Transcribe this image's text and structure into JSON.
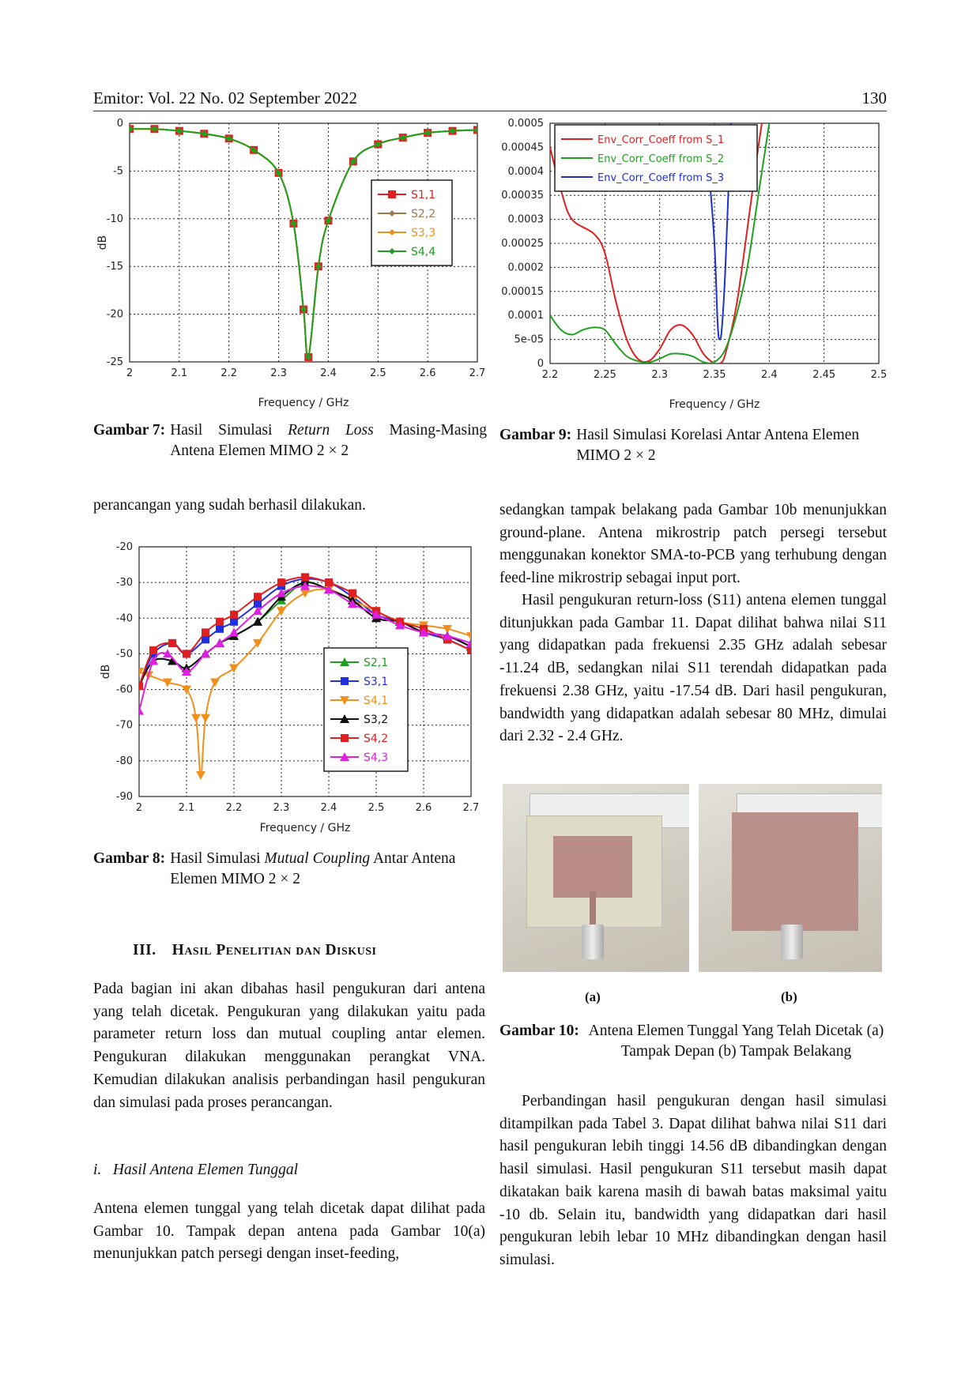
{
  "header": {
    "journal": "Emitor: Vol. 22 No. 02 September 2022",
    "page": "130"
  },
  "figures": {
    "fig7": {
      "label": "Gambar 7:",
      "caption_pre": "Hasil Simulasi ",
      "caption_em": "Return Loss",
      "caption_post": " Masing-Masing Antena Elemen MIMO 2 × 2"
    },
    "fig8": {
      "label": "Gambar 8:",
      "caption_pre": "Hasil Simulasi ",
      "caption_em": "Mutual Coupling",
      "caption_post": " Antar Antena Elemen MIMO 2 × 2"
    },
    "fig9": {
      "label": "Gambar 9:",
      "caption": "Hasil Simulasi Korelasi Antar Antena Elemen MIMO 2 × 2"
    },
    "fig10": {
      "label": "Gambar 10:",
      "caption": "Antena Elemen Tunggal Yang Telah Dicetak (a) Tampak Depan (b) Tampak Belakang",
      "sub_a": "(a)",
      "sub_b": "(b)"
    }
  },
  "chart_data": [
    {
      "id": "fig7",
      "type": "line",
      "title": "",
      "xlabel": "Frequency / GHz",
      "ylabel": "dB",
      "xlim": [
        2,
        2.7
      ],
      "ylim": [
        -25,
        0
      ],
      "xticks": [
        "2",
        "2.1",
        "2.2",
        "2.3",
        "2.4",
        "2.5",
        "2.6",
        "2.7"
      ],
      "yticks": [
        "0",
        "-5",
        "-10",
        "-15",
        "-20",
        "-25"
      ],
      "legend_position": "right",
      "series": [
        {
          "name": "S1,1",
          "color": "#e02020",
          "marker": "square",
          "x": [
            2.0,
            2.05,
            2.1,
            2.15,
            2.2,
            2.25,
            2.3,
            2.33,
            2.35,
            2.36,
            2.38,
            2.4,
            2.45,
            2.5,
            2.55,
            2.6,
            2.65,
            2.7
          ],
          "y": [
            -0.6,
            -0.6,
            -0.8,
            -1.1,
            -1.6,
            -2.8,
            -5.2,
            -10.5,
            -19.5,
            -24.5,
            -15.0,
            -10.2,
            -4.0,
            -2.2,
            -1.5,
            -1.0,
            -0.8,
            -0.7
          ]
        },
        {
          "name": "S2,2",
          "color": "#a0784a",
          "marker": "diamond",
          "x": [
            2.0,
            2.05,
            2.1,
            2.15,
            2.2,
            2.25,
            2.3,
            2.33,
            2.35,
            2.36,
            2.38,
            2.4,
            2.45,
            2.5,
            2.55,
            2.6,
            2.65,
            2.7
          ],
          "y": [
            -0.6,
            -0.6,
            -0.8,
            -1.1,
            -1.6,
            -2.8,
            -5.2,
            -10.5,
            -19.5,
            -24.5,
            -15.0,
            -10.2,
            -4.0,
            -2.2,
            -1.5,
            -1.0,
            -0.8,
            -0.7
          ]
        },
        {
          "name": "S3,3",
          "color": "#f0901a",
          "marker": "diamond",
          "x": [
            2.0,
            2.05,
            2.1,
            2.15,
            2.2,
            2.25,
            2.3,
            2.33,
            2.35,
            2.36,
            2.38,
            2.4,
            2.45,
            2.5,
            2.55,
            2.6,
            2.65,
            2.7
          ],
          "y": [
            -0.6,
            -0.6,
            -0.8,
            -1.1,
            -1.6,
            -2.8,
            -5.2,
            -10.5,
            -19.5,
            -24.5,
            -15.0,
            -10.2,
            -4.0,
            -2.2,
            -1.5,
            -1.0,
            -0.8,
            -0.7
          ]
        },
        {
          "name": "S4,4",
          "color": "#20a020",
          "marker": "diamond",
          "x": [
            2.0,
            2.05,
            2.1,
            2.15,
            2.2,
            2.25,
            2.3,
            2.33,
            2.35,
            2.36,
            2.38,
            2.4,
            2.45,
            2.5,
            2.55,
            2.6,
            2.65,
            2.7
          ],
          "y": [
            -0.6,
            -0.6,
            -0.8,
            -1.1,
            -1.6,
            -2.8,
            -5.2,
            -10.5,
            -19.5,
            -24.5,
            -15.0,
            -10.2,
            -4.0,
            -2.2,
            -1.5,
            -1.0,
            -0.8,
            -0.7
          ]
        }
      ]
    },
    {
      "id": "fig8",
      "type": "line",
      "title": "",
      "xlabel": "Frequency / GHz",
      "ylabel": "dB",
      "xlim": [
        2,
        2.7
      ],
      "ylim": [
        -90,
        -20
      ],
      "xticks": [
        "2",
        "2.1",
        "2.2",
        "2.3",
        "2.4",
        "2.5",
        "2.6",
        "2.7"
      ],
      "yticks": [
        "-20",
        "-30",
        "-40",
        "-50",
        "-60",
        "-70",
        "-80",
        "-90"
      ],
      "legend_position": "center",
      "series": [
        {
          "name": "S2,1",
          "color": "#20a020",
          "marker": "triangle",
          "x": [
            2.0,
            2.03,
            2.07,
            2.1,
            2.14,
            2.17,
            2.2,
            2.25,
            2.3,
            2.35,
            2.4,
            2.45,
            2.5,
            2.55,
            2.6,
            2.65,
            2.7
          ],
          "y": [
            -59,
            -52,
            -52,
            -54,
            -50,
            -47,
            -45,
            -41,
            -35,
            -30,
            -32,
            -35,
            -40,
            -41,
            -44,
            -45,
            -48
          ]
        },
        {
          "name": "S3,1",
          "color": "#2030e0",
          "marker": "square",
          "x": [
            2.0,
            2.03,
            2.07,
            2.1,
            2.14,
            2.17,
            2.2,
            2.25,
            2.3,
            2.35,
            2.4,
            2.45,
            2.5,
            2.55,
            2.6,
            2.65,
            2.7
          ],
          "y": [
            -59,
            -50,
            -47,
            -50,
            -46,
            -43,
            -41,
            -36,
            -31,
            -29,
            -30,
            -34,
            -39,
            -41,
            -44,
            -46,
            -49
          ]
        },
        {
          "name": "S4,1",
          "color": "#f0901a",
          "marker": "triangle-down",
          "x": [
            2.0,
            2.02,
            2.06,
            2.1,
            2.12,
            2.13,
            2.14,
            2.16,
            2.2,
            2.25,
            2.3,
            2.35,
            2.4,
            2.45,
            2.5,
            2.55,
            2.6,
            2.65,
            2.7
          ],
          "y": [
            -55,
            -56,
            -58,
            -60,
            -68,
            -84,
            -68,
            -58,
            -54,
            -47,
            -38,
            -33,
            -32,
            -35,
            -38,
            -41,
            -42,
            -43,
            -45
          ]
        },
        {
          "name": "S3,2",
          "color": "#111111",
          "marker": "triangle",
          "x": [
            2.0,
            2.03,
            2.07,
            2.1,
            2.14,
            2.17,
            2.2,
            2.25,
            2.3,
            2.35,
            2.4,
            2.45,
            2.5,
            2.55,
            2.6,
            2.65,
            2.7
          ],
          "y": [
            -59,
            -52,
            -52,
            -54,
            -50,
            -47,
            -45,
            -41,
            -34,
            -30,
            -32,
            -35,
            -40,
            -41,
            -44,
            -45,
            -48
          ]
        },
        {
          "name": "S4,2",
          "color": "#e02020",
          "marker": "square",
          "x": [
            2.0,
            2.03,
            2.07,
            2.1,
            2.14,
            2.17,
            2.2,
            2.25,
            2.3,
            2.35,
            2.4,
            2.45,
            2.5,
            2.55,
            2.6,
            2.65,
            2.7
          ],
          "y": [
            -59,
            -49,
            -47,
            -50,
            -44,
            -41,
            -39,
            -34,
            -30,
            -28.5,
            -30,
            -33,
            -38,
            -41,
            -43,
            -46,
            -49
          ]
        },
        {
          "name": "S4,3",
          "color": "#e020e0",
          "marker": "triangle",
          "x": [
            2.0,
            2.03,
            2.06,
            2.1,
            2.14,
            2.17,
            2.2,
            2.25,
            2.3,
            2.35,
            2.4,
            2.45,
            2.5,
            2.55,
            2.6,
            2.65,
            2.7
          ],
          "y": [
            -66,
            -52,
            -50,
            -55,
            -50,
            -47,
            -44,
            -38,
            -33,
            -31,
            -32,
            -36,
            -39,
            -42,
            -44,
            -45,
            -47
          ]
        }
      ]
    },
    {
      "id": "fig9",
      "type": "line",
      "title": "",
      "xlabel": "Frequency / GHz",
      "ylabel": "",
      "xlim": [
        2.2,
        2.5
      ],
      "ylim": [
        0,
        0.0005
      ],
      "xticks": [
        "2.2",
        "2.25",
        "2.3",
        "2.35",
        "2.4",
        "2.45",
        "2.5"
      ],
      "yticks": [
        "0.0005",
        "0.00045",
        "0.0004",
        "0.00035",
        "0.0003",
        "0.00025",
        "0.0002",
        "0.00015",
        "0.0001",
        "5e-05",
        "0"
      ],
      "legend_position": "top-left",
      "series": [
        {
          "name": "Env_Corr_Coeff from S_1",
          "color": "#e02020",
          "x": [
            2.2,
            2.21,
            2.22,
            2.24,
            2.25,
            2.26,
            2.27,
            2.28,
            2.29,
            2.3,
            2.31,
            2.32,
            2.33,
            2.34,
            2.35,
            2.355,
            2.36,
            2.37,
            2.38,
            2.39,
            2.4
          ],
          "y": [
            0.00045,
            0.00036,
            0.0003,
            0.00027,
            0.00023,
            0.00013,
            5e-05,
            1e-05,
            5e-06,
            3e-05,
            7e-05,
            8e-05,
            6e-05,
            2e-05,
            0.0,
            0.0,
            2e-05,
            0.00012,
            0.00028,
            0.00045,
            0.0006
          ]
        },
        {
          "name": "Env_Corr_Coeff from S_2",
          "color": "#20a020",
          "x": [
            2.2,
            2.21,
            2.22,
            2.23,
            2.24,
            2.25,
            2.26,
            2.27,
            2.28,
            2.29,
            2.3,
            2.31,
            2.32,
            2.33,
            2.34,
            2.35,
            2.36,
            2.37,
            2.38,
            2.39,
            2.4
          ],
          "y": [
            0.0001,
            7e-05,
            6e-05,
            7e-05,
            7.5e-05,
            7e-05,
            4e-05,
            1.5e-05,
            5e-06,
            2e-06,
            1e-05,
            2e-05,
            2e-05,
            1.5e-05,
            3e-06,
            3e-06,
            3e-05,
            0.0001,
            0.0002,
            0.00035,
            0.0005
          ]
        },
        {
          "name": "Env_Corr_Coeff from S_3",
          "color": "#2030d0",
          "x": [
            2.345,
            2.35,
            2.353,
            2.355,
            2.357,
            2.36,
            2.365
          ],
          "y": [
            0.0004,
            0.00025,
            8e-05,
            5e-05,
            8e-05,
            0.0002,
            0.0005
          ]
        }
      ]
    }
  ],
  "body": {
    "left_top": "perancangan yang sudah berhasil dilakukan.",
    "section_num": "III.",
    "section_title": "Hasil Penelitian dan Diskusi",
    "section_para": "Pada bagian ini akan dibahas hasil pengukuran dari antena yang telah dicetak. Pengukuran yang dilakukan yaitu pada parameter return loss dan mutual coupling antar elemen. Pengukuran dilakukan menggunakan perangkat VNA. Kemudian dilakukan analisis perbandingan hasil pengukuran dan simulasi pada proses perancangan.",
    "subsection": "i.   Hasil Antena Elemen Tunggal",
    "subsection_para": "Antena elemen tunggal yang telah dicetak dapat dilihat pada Gambar 10. Tampak depan antena pada Gambar 10(a) menunjukkan patch persegi dengan inset-feeding,",
    "right_para1": "sedangkan tampak belakang pada Gambar 10b menunjukkan ground-plane. Antena mikrostrip patch persegi tersebut menggunakan konektor SMA-to-PCB yang terhubung dengan feed-line mikrostrip sebagai input port.",
    "right_para2": "Hasil pengukuran return-loss (S11) antena elemen tunggal ditunjukkan pada Gambar 11. Dapat dilihat bahwa nilai S11 yang didapatkan pada frekuensi 2.35 GHz adalah sebesar -11.24 dB, sedangkan nilai S11 terendah didapatkan pada frekuensi 2.38 GHz, yaitu -17.54 dB. Dari hasil pengukuran, bandwidth yang didapatkan adalah sebesar 80 MHz, dimulai dari 2.32 - 2.4 GHz.",
    "right_para3": "Perbandingan hasil pengukuran dengan hasil simulasi ditampilkan pada Tabel 3. Dapat dilihat bahwa nilai S11 dari hasil pengukuran lebih tinggi 14.56 dB dibandingkan dengan hasil simulasi. Hasil pengukuran S11 tersebut masih dapat dikatakan baik karena masih di bawah batas maksimal yaitu -10 db. Selain itu, bandwidth yang didapatkan dari hasil pengukuran lebih lebar 10 MHz dibandingkan dengan hasil simulasi."
  }
}
